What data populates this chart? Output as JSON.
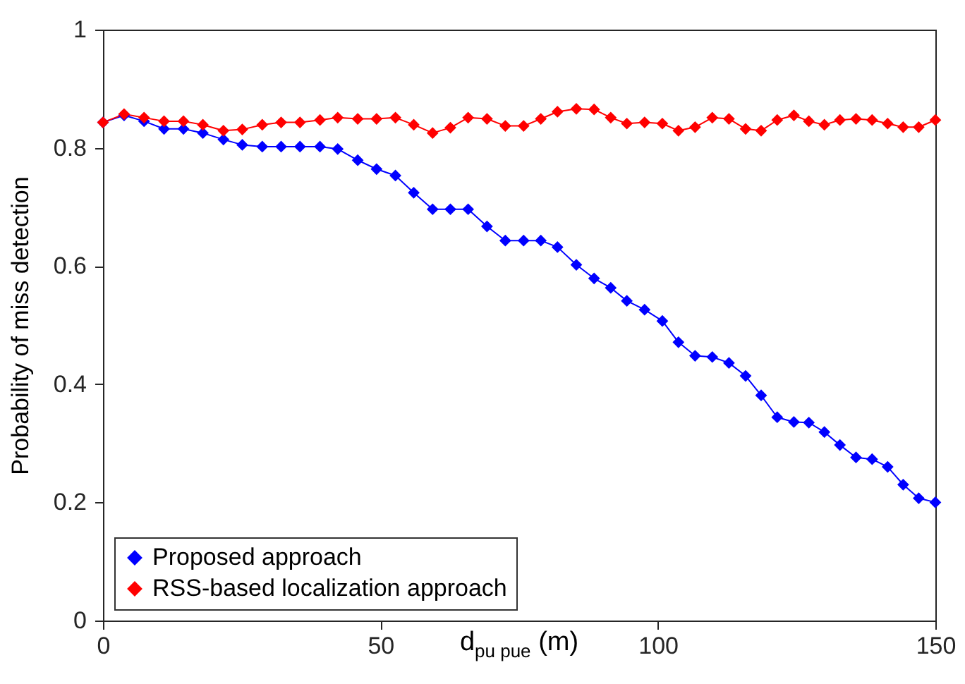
{
  "chart_data": {
    "type": "line",
    "xlabel": "d$_{pu pue}$ (m)",
    "ylabel": "Probability of miss detection",
    "x": [
      0,
      3.8,
      7.4,
      11.0,
      14.5,
      18.0,
      21.7,
      25.1,
      28.7,
      32.1,
      35.5,
      39.1,
      42.3,
      45.9,
      49.3,
      52.7,
      56.0,
      59.4,
      62.6,
      65.8,
      69.2,
      72.5,
      75.8,
      78.9,
      81.9,
      85.3,
      88.5,
      91.5,
      94.4,
      97.6,
      100.8,
      103.7,
      106.7,
      109.8,
      112.8,
      115.8,
      118.6,
      121.5,
      124.5,
      127.2,
      130.0,
      132.8,
      135.7,
      138.6,
      141.4,
      144.2,
      147.0,
      150
    ],
    "series": [
      {
        "name": "Proposed approach",
        "color": "#0000ff",
        "values": [
          0.843,
          0.855,
          0.845,
          0.832,
          0.832,
          0.825,
          0.814,
          0.805,
          0.802,
          0.802,
          0.802,
          0.802,
          0.798,
          0.779,
          0.764,
          0.753,
          0.724,
          0.696,
          0.696,
          0.696,
          0.667,
          0.643,
          0.643,
          0.643,
          0.632,
          0.602,
          0.579,
          0.563,
          0.541,
          0.526,
          0.507,
          0.471,
          0.448,
          0.446,
          0.436,
          0.414,
          0.381,
          0.344,
          0.336,
          0.335,
          0.319,
          0.297,
          0.276,
          0.273,
          0.26,
          0.23,
          0.207,
          0.2
        ]
      },
      {
        "name": "RSS-based localization approach",
        "color": "#ff0000",
        "values": [
          0.843,
          0.857,
          0.851,
          0.845,
          0.845,
          0.839,
          0.829,
          0.831,
          0.839,
          0.843,
          0.843,
          0.847,
          0.851,
          0.849,
          0.849,
          0.851,
          0.839,
          0.825,
          0.834,
          0.851,
          0.849,
          0.837,
          0.837,
          0.849,
          0.861,
          0.866,
          0.865,
          0.851,
          0.841,
          0.843,
          0.841,
          0.829,
          0.835,
          0.851,
          0.849,
          0.832,
          0.829,
          0.847,
          0.855,
          0.845,
          0.839,
          0.847,
          0.849,
          0.847,
          0.841,
          0.835,
          0.835,
          0.847
        ]
      }
    ],
    "xlim": [
      0,
      150
    ],
    "xticks": [
      0,
      50,
      100,
      150
    ],
    "ylim": [
      0,
      1
    ],
    "yticks": [
      0,
      0.2,
      0.4,
      0.6,
      0.8,
      1
    ],
    "legend": "bottom left",
    "marker": "diamond",
    "line_style": "solid"
  }
}
